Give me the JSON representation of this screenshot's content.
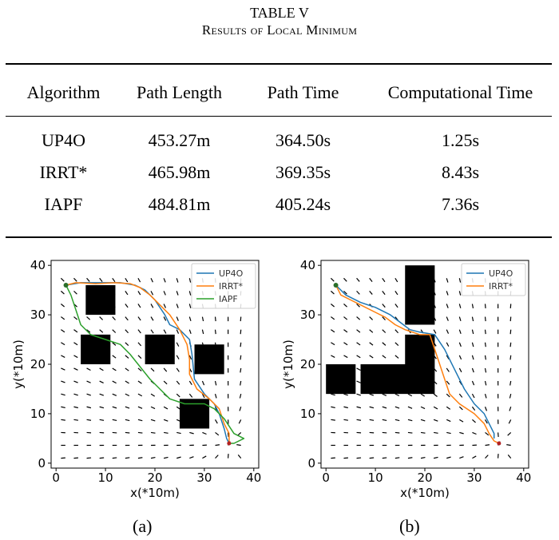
{
  "table": {
    "title": "TABLE V",
    "subtitle": "Results of Local Minimum",
    "columns": [
      "Algorithm",
      "Path Length",
      "Path Time",
      "Computational Time"
    ],
    "rows": [
      [
        "UP4O",
        "453.27m",
        "364.50s",
        "1.25s"
      ],
      [
        "IRRT*",
        "465.98m",
        "369.35s",
        "8.43s"
      ],
      [
        "IAPF",
        "484.81m",
        "405.24s",
        "7.36s"
      ]
    ]
  },
  "figures": [
    {
      "caption": "(a)",
      "xlabel": "x(*10m)",
      "ylabel": "y(*10m)",
      "xticks": [
        "0",
        "10",
        "20",
        "30",
        "40"
      ],
      "yticks": [
        "0",
        "10",
        "20",
        "30",
        "40"
      ],
      "legend": [
        {
          "label": "UP4O",
          "color": "#1f77b4"
        },
        {
          "label": "IRRT*",
          "color": "#ff7f0e"
        },
        {
          "label": "IAPF",
          "color": "#2ca02c"
        }
      ]
    },
    {
      "caption": "(b)",
      "xlabel": "x(*10m)",
      "ylabel": "y(*10m)",
      "xticks": [
        "0",
        "10",
        "20",
        "30",
        "40"
      ],
      "yticks": [
        "0",
        "10",
        "20",
        "30",
        "40"
      ],
      "legend": [
        {
          "label": "UP4O",
          "color": "#1f77b4"
        },
        {
          "label": "IRRT*",
          "color": "#ff7f0e"
        }
      ]
    }
  ],
  "chart_data": [
    {
      "type": "line",
      "title": "(a)",
      "xlabel": "x(*10m)",
      "ylabel": "y(*10m)",
      "xlim": [
        -1,
        41
      ],
      "ylim": [
        -1,
        41
      ],
      "grid": false,
      "legend_position": "top-right",
      "start": [
        2,
        36
      ],
      "goal": [
        35,
        4
      ],
      "obstacles": [
        {
          "x": [
            6,
            12
          ],
          "y": [
            30,
            36
          ]
        },
        {
          "x": [
            5,
            11
          ],
          "y": [
            20,
            26
          ]
        },
        {
          "x": [
            18,
            24
          ],
          "y": [
            20,
            26
          ]
        },
        {
          "x": [
            28,
            34
          ],
          "y": [
            18,
            24
          ]
        },
        {
          "x": [
            25,
            31
          ],
          "y": [
            7,
            13
          ]
        }
      ],
      "series": [
        {
          "name": "UP4O",
          "color": "#1f77b4",
          "points": [
            [
              2,
              36
            ],
            [
              5,
              36.5
            ],
            [
              9,
              36.5
            ],
            [
              13,
              36.5
            ],
            [
              16,
              36
            ],
            [
              18,
              35
            ],
            [
              20,
              33
            ],
            [
              22,
              30
            ],
            [
              23,
              28
            ],
            [
              25,
              27
            ],
            [
              27,
              25
            ],
            [
              27.5,
              22
            ],
            [
              28,
              17
            ],
            [
              30,
              14
            ],
            [
              32,
              12
            ],
            [
              33,
              10
            ],
            [
              34,
              7
            ],
            [
              34.5,
              5
            ],
            [
              35,
              4
            ]
          ]
        },
        {
          "name": "IRRT*",
          "color": "#ff7f0e",
          "points": [
            [
              2,
              36
            ],
            [
              4,
              36.5
            ],
            [
              8,
              36.3
            ],
            [
              12,
              36.5
            ],
            [
              15,
              36.3
            ],
            [
              17,
              35.5
            ],
            [
              19,
              34
            ],
            [
              21,
              32
            ],
            [
              23,
              30
            ],
            [
              25,
              27
            ],
            [
              26.5,
              24
            ],
            [
              27,
              21
            ],
            [
              27,
              18
            ],
            [
              28.5,
              15
            ],
            [
              31,
              13
            ],
            [
              33,
              11
            ],
            [
              34,
              8
            ],
            [
              35,
              6
            ],
            [
              35,
              4
            ]
          ]
        },
        {
          "name": "IAPF",
          "color": "#2ca02c",
          "points": [
            [
              2,
              36
            ],
            [
              3,
              34
            ],
            [
              4,
              31
            ],
            [
              5,
              28
            ],
            [
              7,
              26
            ],
            [
              10,
              25
            ],
            [
              13,
              24
            ],
            [
              15,
              22
            ],
            [
              17,
              19.5
            ],
            [
              19,
              17
            ],
            [
              21,
              15
            ],
            [
              23,
              13
            ],
            [
              26,
              12
            ],
            [
              30,
              12
            ],
            [
              32,
              11
            ],
            [
              34,
              9
            ],
            [
              36,
              6
            ],
            [
              38,
              5
            ],
            [
              36,
              4
            ],
            [
              35,
              4
            ]
          ]
        }
      ]
    },
    {
      "type": "line",
      "title": "(b)",
      "xlabel": "x(*10m)",
      "ylabel": "y(*10m)",
      "xlim": [
        -1,
        41
      ],
      "ylim": [
        -1,
        41
      ],
      "grid": false,
      "legend_position": "top-right",
      "start": [
        2,
        36
      ],
      "goal": [
        35,
        4
      ],
      "obstacles": [
        {
          "x": [
            16,
            22
          ],
          "y": [
            28,
            40
          ]
        },
        {
          "x": [
            16,
            22
          ],
          "y": [
            20,
            26
          ]
        },
        {
          "x": [
            7,
            22
          ],
          "y": [
            14,
            20
          ]
        },
        {
          "x": [
            0,
            6
          ],
          "y": [
            14,
            20
          ]
        }
      ],
      "series": [
        {
          "name": "UP4O",
          "color": "#1f77b4",
          "points": [
            [
              2,
              36
            ],
            [
              4,
              34
            ],
            [
              7,
              32.5
            ],
            [
              10,
              31.5
            ],
            [
              13,
              30
            ],
            [
              15,
              28.5
            ],
            [
              17,
              27
            ],
            [
              19,
              26.5
            ],
            [
              22,
              26
            ],
            [
              24,
              23
            ],
            [
              26,
              19
            ],
            [
              28,
              15
            ],
            [
              30,
              12
            ],
            [
              32,
              10
            ],
            [
              33,
              8
            ],
            [
              34,
              6
            ],
            [
              34,
              5
            ]
          ]
        },
        {
          "name": "IRRT*",
          "color": "#ff7f0e",
          "points": [
            [
              2,
              36
            ],
            [
              3,
              34
            ],
            [
              5,
              33
            ],
            [
              7,
              32
            ],
            [
              10,
              30.5
            ],
            [
              12,
              29.5
            ],
            [
              14,
              28
            ],
            [
              16,
              27
            ],
            [
              19,
              26
            ],
            [
              21,
              26
            ],
            [
              22,
              23
            ],
            [
              23,
              20
            ],
            [
              24,
              17
            ],
            [
              25,
              14
            ],
            [
              27,
              12
            ],
            [
              30,
              10
            ],
            [
              32,
              8
            ],
            [
              33,
              6
            ],
            [
              34,
              4.5
            ],
            [
              35,
              4
            ]
          ]
        }
      ]
    }
  ]
}
